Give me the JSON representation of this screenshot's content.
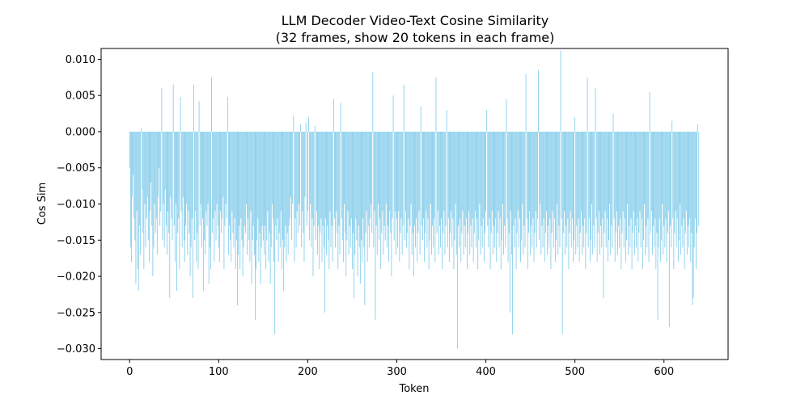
{
  "chart_data": {
    "type": "bar",
    "title": "LLM Decoder Video-Text Cosine Similarity",
    "subtitle": "(32 frames, show 20 tokens in each frame)",
    "xlabel": "Token",
    "ylabel": "Cos Sim",
    "xlim": [
      -32,
      672
    ],
    "ylim": [
      -0.0315,
      0.0115
    ],
    "xticks": [
      0,
      100,
      200,
      300,
      400,
      500,
      600
    ],
    "xtick_labels": [
      "0",
      "100",
      "200",
      "300",
      "400",
      "500",
      "600"
    ],
    "yticks": [
      -0.03,
      -0.025,
      -0.02,
      -0.015,
      -0.01,
      -0.005,
      0.0,
      0.005,
      0.01
    ],
    "ytick_labels": [
      "−0.030",
      "−0.025",
      "−0.020",
      "−0.015",
      "−0.010",
      "−0.005",
      "0.000",
      "0.005",
      "0.010"
    ],
    "grid": false,
    "bar_color": "#87CEEB",
    "series": [
      {
        "x_start": 0,
        "values": [
          -0.005,
          -0.016,
          -0.018,
          -0.009,
          -0.006,
          -0.012,
          -0.015,
          -0.021,
          -0.011,
          -0.019,
          -0.022,
          -0.013,
          -0.017,
          0.0005,
          -0.008,
          -0.014,
          -0.019,
          -0.01,
          -0.016,
          -0.012,
          -0.009,
          -0.015,
          -0.018,
          -0.011,
          -0.007,
          -0.013,
          -0.02,
          -0.016,
          -0.01,
          -0.014,
          -0.012,
          -0.017,
          -0.009,
          -0.005,
          -0.013,
          -0.011,
          0.006,
          -0.015,
          -0.01,
          -0.016,
          -0.008,
          -0.013,
          -0.017,
          -0.011,
          -0.014,
          -0.023,
          -0.009,
          -0.012,
          -0.015,
          0.0065,
          -0.013,
          -0.018,
          -0.01,
          -0.022,
          -0.014,
          -0.012,
          -0.019,
          0.0048,
          -0.011,
          -0.016,
          -0.009,
          -0.015,
          -0.018,
          -0.013,
          -0.01,
          -0.017,
          -0.011,
          -0.014,
          -0.02,
          -0.016,
          -0.012,
          -0.023,
          0.0065,
          -0.015,
          -0.011,
          -0.018,
          -0.014,
          -0.019,
          0.0042,
          -0.013,
          -0.01,
          -0.016,
          -0.012,
          -0.022,
          -0.015,
          -0.017,
          -0.011,
          -0.013,
          -0.01,
          -0.021,
          -0.016,
          -0.019,
          0.0075,
          -0.014,
          -0.012,
          -0.018,
          -0.011,
          -0.015,
          -0.01,
          -0.013
        ]
      },
      {
        "x_start": 100,
        "values": [
          -0.016,
          -0.018,
          -0.011,
          -0.014,
          -0.012,
          -0.009,
          -0.019,
          -0.013,
          -0.01,
          -0.012,
          0.0048,
          -0.017,
          -0.013,
          -0.015,
          -0.018,
          -0.011,
          -0.014,
          -0.016,
          -0.012,
          -0.019,
          -0.015,
          -0.024,
          -0.017,
          -0.013,
          -0.019,
          -0.012,
          -0.015,
          -0.02,
          -0.016,
          -0.013,
          -0.014,
          -0.01,
          -0.017,
          -0.012,
          -0.015,
          -0.018,
          -0.011,
          -0.021,
          -0.015,
          -0.013,
          -0.017,
          -0.026,
          -0.019,
          -0.015,
          -0.012,
          -0.018,
          -0.014,
          -0.021,
          -0.016,
          -0.013,
          -0.015,
          -0.017,
          -0.013,
          -0.019,
          -0.015,
          -0.011,
          -0.018,
          -0.014,
          -0.021,
          -0.016,
          -0.01,
          -0.012,
          -0.018,
          -0.028,
          -0.013,
          -0.015,
          -0.012,
          -0.018,
          -0.014,
          -0.016,
          -0.011,
          -0.019,
          -0.015,
          -0.022,
          -0.016,
          -0.013,
          -0.018,
          -0.014,
          -0.017,
          -0.013,
          -0.012,
          -0.009,
          -0.015,
          -0.01,
          0.0022,
          -0.018,
          -0.012,
          -0.016,
          -0.011,
          -0.014,
          -0.01,
          -0.013,
          0.001,
          -0.016,
          -0.011,
          -0.014,
          -0.018,
          -0.009,
          0.0012,
          -0.013
        ]
      },
      {
        "x_start": 200,
        "values": [
          -0.011,
          0.002,
          -0.015,
          -0.01,
          -0.016,
          -0.012,
          -0.02,
          -0.013,
          0.0008,
          -0.015,
          -0.011,
          -0.017,
          -0.013,
          -0.019,
          -0.014,
          -0.012,
          -0.018,
          -0.013,
          -0.016,
          -0.025,
          -0.012,
          -0.017,
          -0.013,
          -0.015,
          -0.019,
          -0.011,
          -0.016,
          -0.013,
          -0.018,
          0.0045,
          -0.012,
          -0.016,
          -0.011,
          -0.014,
          -0.019,
          -0.013,
          -0.017,
          0.004,
          -0.012,
          -0.015,
          -0.018,
          -0.01,
          -0.014,
          -0.02,
          -0.015,
          -0.011,
          -0.017,
          -0.013,
          -0.016,
          -0.012,
          -0.019,
          -0.014,
          -0.023,
          -0.017,
          -0.012,
          -0.015,
          -0.02,
          -0.013,
          -0.016,
          -0.021,
          -0.015,
          -0.018,
          -0.012,
          -0.016,
          -0.024,
          -0.014,
          -0.011,
          -0.018,
          -0.013,
          -0.016,
          -0.012,
          -0.01,
          -0.014,
          0.0082,
          -0.016,
          -0.011,
          -0.026,
          -0.013,
          -0.017,
          -0.01,
          -0.015,
          -0.012,
          -0.019,
          -0.014,
          -0.011,
          -0.017,
          -0.013,
          -0.015,
          -0.01,
          -0.016,
          -0.013,
          -0.018,
          -0.011,
          -0.014,
          -0.02,
          -0.012,
          0.005,
          -0.015,
          -0.011,
          -0.017
        ]
      },
      {
        "x_start": 300,
        "values": [
          -0.012,
          -0.016,
          -0.011,
          -0.018,
          -0.014,
          -0.012,
          -0.017,
          -0.013,
          0.0065,
          -0.015,
          -0.011,
          -0.016,
          -0.014,
          -0.012,
          -0.019,
          -0.013,
          -0.01,
          -0.017,
          -0.014,
          -0.02,
          -0.013,
          -0.016,
          -0.012,
          -0.018,
          -0.014,
          -0.011,
          -0.017,
          0.0035,
          -0.013,
          -0.015,
          -0.012,
          -0.018,
          -0.014,
          -0.011,
          -0.016,
          -0.012,
          -0.019,
          -0.015,
          -0.01,
          -0.017,
          -0.013,
          -0.016,
          -0.012,
          -0.018,
          0.0075,
          -0.014,
          -0.011,
          -0.017,
          -0.013,
          -0.016,
          -0.012,
          -0.019,
          -0.014,
          -0.011,
          -0.017,
          -0.013,
          0.003,
          -0.016,
          -0.012,
          -0.018,
          -0.014,
          -0.011,
          -0.016,
          -0.012,
          -0.019,
          -0.015,
          -0.01,
          -0.017,
          -0.03,
          -0.013,
          -0.016,
          -0.012,
          -0.018,
          -0.014,
          -0.011,
          -0.017,
          -0.013,
          -0.016,
          -0.012,
          -0.019,
          -0.014,
          -0.011,
          -0.017,
          -0.013,
          -0.016,
          -0.012,
          -0.018,
          -0.014,
          -0.011,
          -0.016,
          -0.012,
          -0.019,
          -0.015,
          -0.01,
          -0.017,
          -0.013,
          -0.016,
          -0.012,
          -0.018,
          -0.014
        ]
      },
      {
        "x_start": 400,
        "values": [
          -0.011,
          0.003,
          -0.013,
          -0.016,
          -0.012,
          -0.019,
          -0.014,
          -0.011,
          -0.017,
          -0.013,
          -0.016,
          -0.012,
          -0.018,
          -0.014,
          -0.011,
          -0.016,
          -0.012,
          -0.019,
          -0.015,
          -0.01,
          -0.017,
          -0.013,
          -0.016,
          0.0045,
          -0.012,
          -0.018,
          -0.014,
          -0.025,
          -0.011,
          -0.017,
          -0.028,
          -0.013,
          -0.016,
          -0.012,
          -0.019,
          -0.014,
          -0.011,
          -0.016,
          -0.012,
          -0.018,
          -0.015,
          -0.01,
          -0.017,
          -0.013,
          -0.016,
          0.008,
          -0.012,
          -0.019,
          -0.014,
          -0.011,
          -0.017,
          -0.013,
          -0.016,
          -0.012,
          -0.018,
          -0.014,
          -0.011,
          -0.016,
          -0.012,
          0.0085,
          -0.015,
          -0.01,
          -0.017,
          -0.013,
          -0.016,
          -0.012,
          -0.018,
          -0.014,
          -0.011,
          -0.017,
          -0.013,
          -0.016,
          -0.012,
          -0.019,
          -0.014,
          -0.011,
          -0.016,
          -0.012,
          -0.018,
          -0.015,
          -0.01,
          -0.017,
          -0.013,
          -0.016,
          0.0112,
          -0.012,
          -0.028,
          -0.014,
          -0.011,
          -0.017,
          -0.013,
          -0.016,
          -0.012,
          -0.019,
          -0.014,
          -0.011,
          -0.016,
          -0.012,
          -0.018,
          -0.015
        ]
      },
      {
        "x_start": 500,
        "values": [
          0.002,
          -0.017,
          -0.013,
          -0.016,
          -0.012,
          -0.018,
          -0.014,
          -0.011,
          -0.017,
          -0.013,
          -0.016,
          -0.012,
          -0.019,
          -0.014,
          0.0075,
          -0.016,
          -0.012,
          -0.018,
          -0.015,
          -0.01,
          -0.017,
          -0.013,
          -0.016,
          0.006,
          -0.012,
          -0.018,
          -0.014,
          -0.011,
          -0.017,
          -0.013,
          -0.016,
          -0.012,
          -0.023,
          -0.014,
          -0.011,
          -0.016,
          -0.012,
          -0.018,
          -0.015,
          -0.01,
          -0.017,
          -0.013,
          -0.016,
          0.0025,
          -0.012,
          -0.018,
          -0.014,
          -0.011,
          -0.017,
          -0.013,
          -0.016,
          -0.012,
          -0.019,
          -0.014,
          -0.011,
          -0.016,
          -0.012,
          -0.018,
          -0.015,
          -0.01,
          -0.017,
          -0.013,
          -0.016,
          -0.012,
          -0.019,
          -0.014,
          -0.011,
          -0.017,
          -0.013,
          -0.016,
          -0.012,
          -0.018,
          -0.014,
          -0.011,
          -0.016,
          -0.012,
          -0.019,
          -0.015,
          -0.01,
          -0.017,
          -0.013,
          -0.016,
          -0.012,
          -0.018,
          0.0055,
          -0.014,
          -0.011,
          -0.017,
          -0.013,
          -0.016,
          -0.012,
          -0.019,
          -0.014,
          -0.026,
          -0.016,
          -0.012,
          -0.018,
          -0.015,
          -0.01,
          -0.017
        ]
      },
      {
        "x_start": 600,
        "values": [
          -0.013,
          -0.016,
          -0.012,
          -0.018,
          -0.014,
          -0.011,
          -0.027,
          -0.013,
          -0.016,
          0.0015,
          -0.012,
          -0.019,
          -0.014,
          -0.011,
          -0.016,
          -0.012,
          -0.018,
          -0.015,
          -0.01,
          -0.017,
          -0.013,
          -0.016,
          -0.012,
          -0.019,
          -0.014,
          -0.011,
          -0.017,
          -0.013,
          -0.016,
          -0.012,
          -0.018,
          -0.014,
          -0.024,
          -0.023,
          -0.016,
          -0.012,
          -0.019,
          -0.014,
          0.001,
          -0.013
        ]
      }
    ]
  }
}
